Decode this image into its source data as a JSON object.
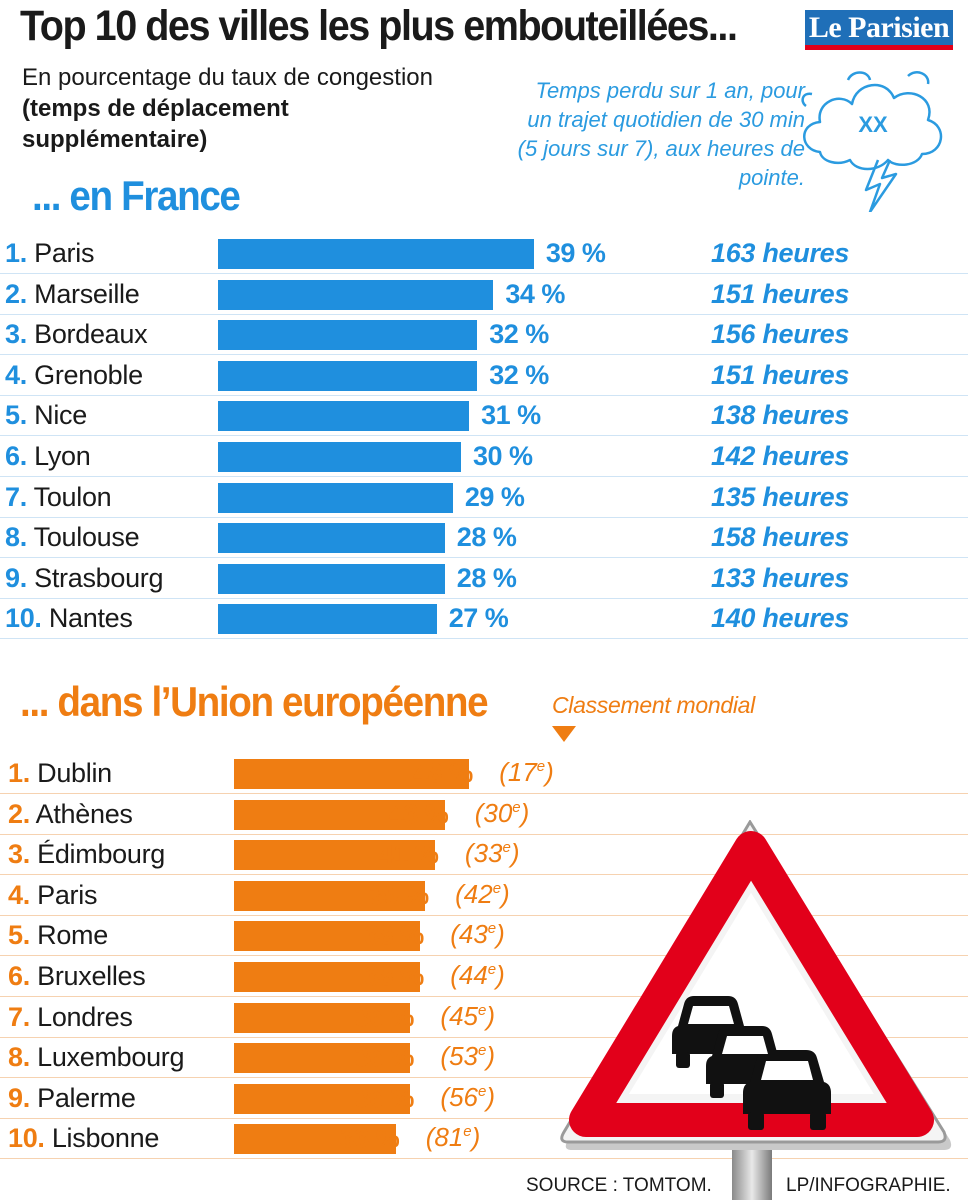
{
  "title": "Top 10 des villes les plus embouteillées...",
  "logo_text": "Le Parisien",
  "subtitle_normal": "En pourcentage du taux de congestion ",
  "subtitle_bold": "(temps de déplacement supplémentaire)",
  "note": "Temps perdu sur 1 an, pour un trajet quotidien de 30 min (5 jours sur 7), aux heures de pointe.",
  "note_cloud_label": "XX",
  "source": "SOURCE : TOMTOM.",
  "credit": "LP/INFOGRAPHIE.",
  "colors": {
    "france": "#1f8fde",
    "europe": "#ef7d12",
    "sign_red": "#e2001a"
  },
  "chart_data": [
    {
      "type": "bar",
      "orientation": "horizontal",
      "title": "... en France",
      "value_unit": "%",
      "categories": [
        "Paris",
        "Marseille",
        "Bordeaux",
        "Grenoble",
        "Nice",
        "Lyon",
        "Toulon",
        "Toulouse",
        "Strasbourg",
        "Nantes"
      ],
      "ranks": [
        "1.",
        "2.",
        "3.",
        "4.",
        "5.",
        "6.",
        "7.",
        "8.",
        "9.",
        "10."
      ],
      "values": [
        39,
        34,
        32,
        32,
        31,
        30,
        29,
        28,
        28,
        27
      ],
      "hours_labels": [
        "163 heures",
        "151 heures",
        "156 heures",
        "151 heures",
        "138 heures",
        "142 heures",
        "135 heures",
        "158 heures",
        "133 heures",
        "140 heures"
      ]
    },
    {
      "type": "bar",
      "orientation": "horizontal",
      "title": "... dans l’Union européenne",
      "value_unit": "%",
      "rank_caption": "Classement mondial",
      "categories": [
        "Dublin",
        "Athènes",
        "Édimbourg",
        "Paris",
        "Rome",
        "Bruxelles",
        "Londres",
        "Luxembourg",
        "Palerme",
        "Lisbonne"
      ],
      "ranks": [
        "1.",
        "2.",
        "3.",
        "4.",
        "5.",
        "6.",
        "7.",
        "8.",
        "9.",
        "10."
      ],
      "values": [
        48,
        43,
        41,
        39,
        38,
        38,
        36,
        36,
        36,
        33
      ],
      "world_rank": [
        17,
        30,
        33,
        42,
        43,
        44,
        45,
        53,
        56,
        81
      ]
    }
  ]
}
